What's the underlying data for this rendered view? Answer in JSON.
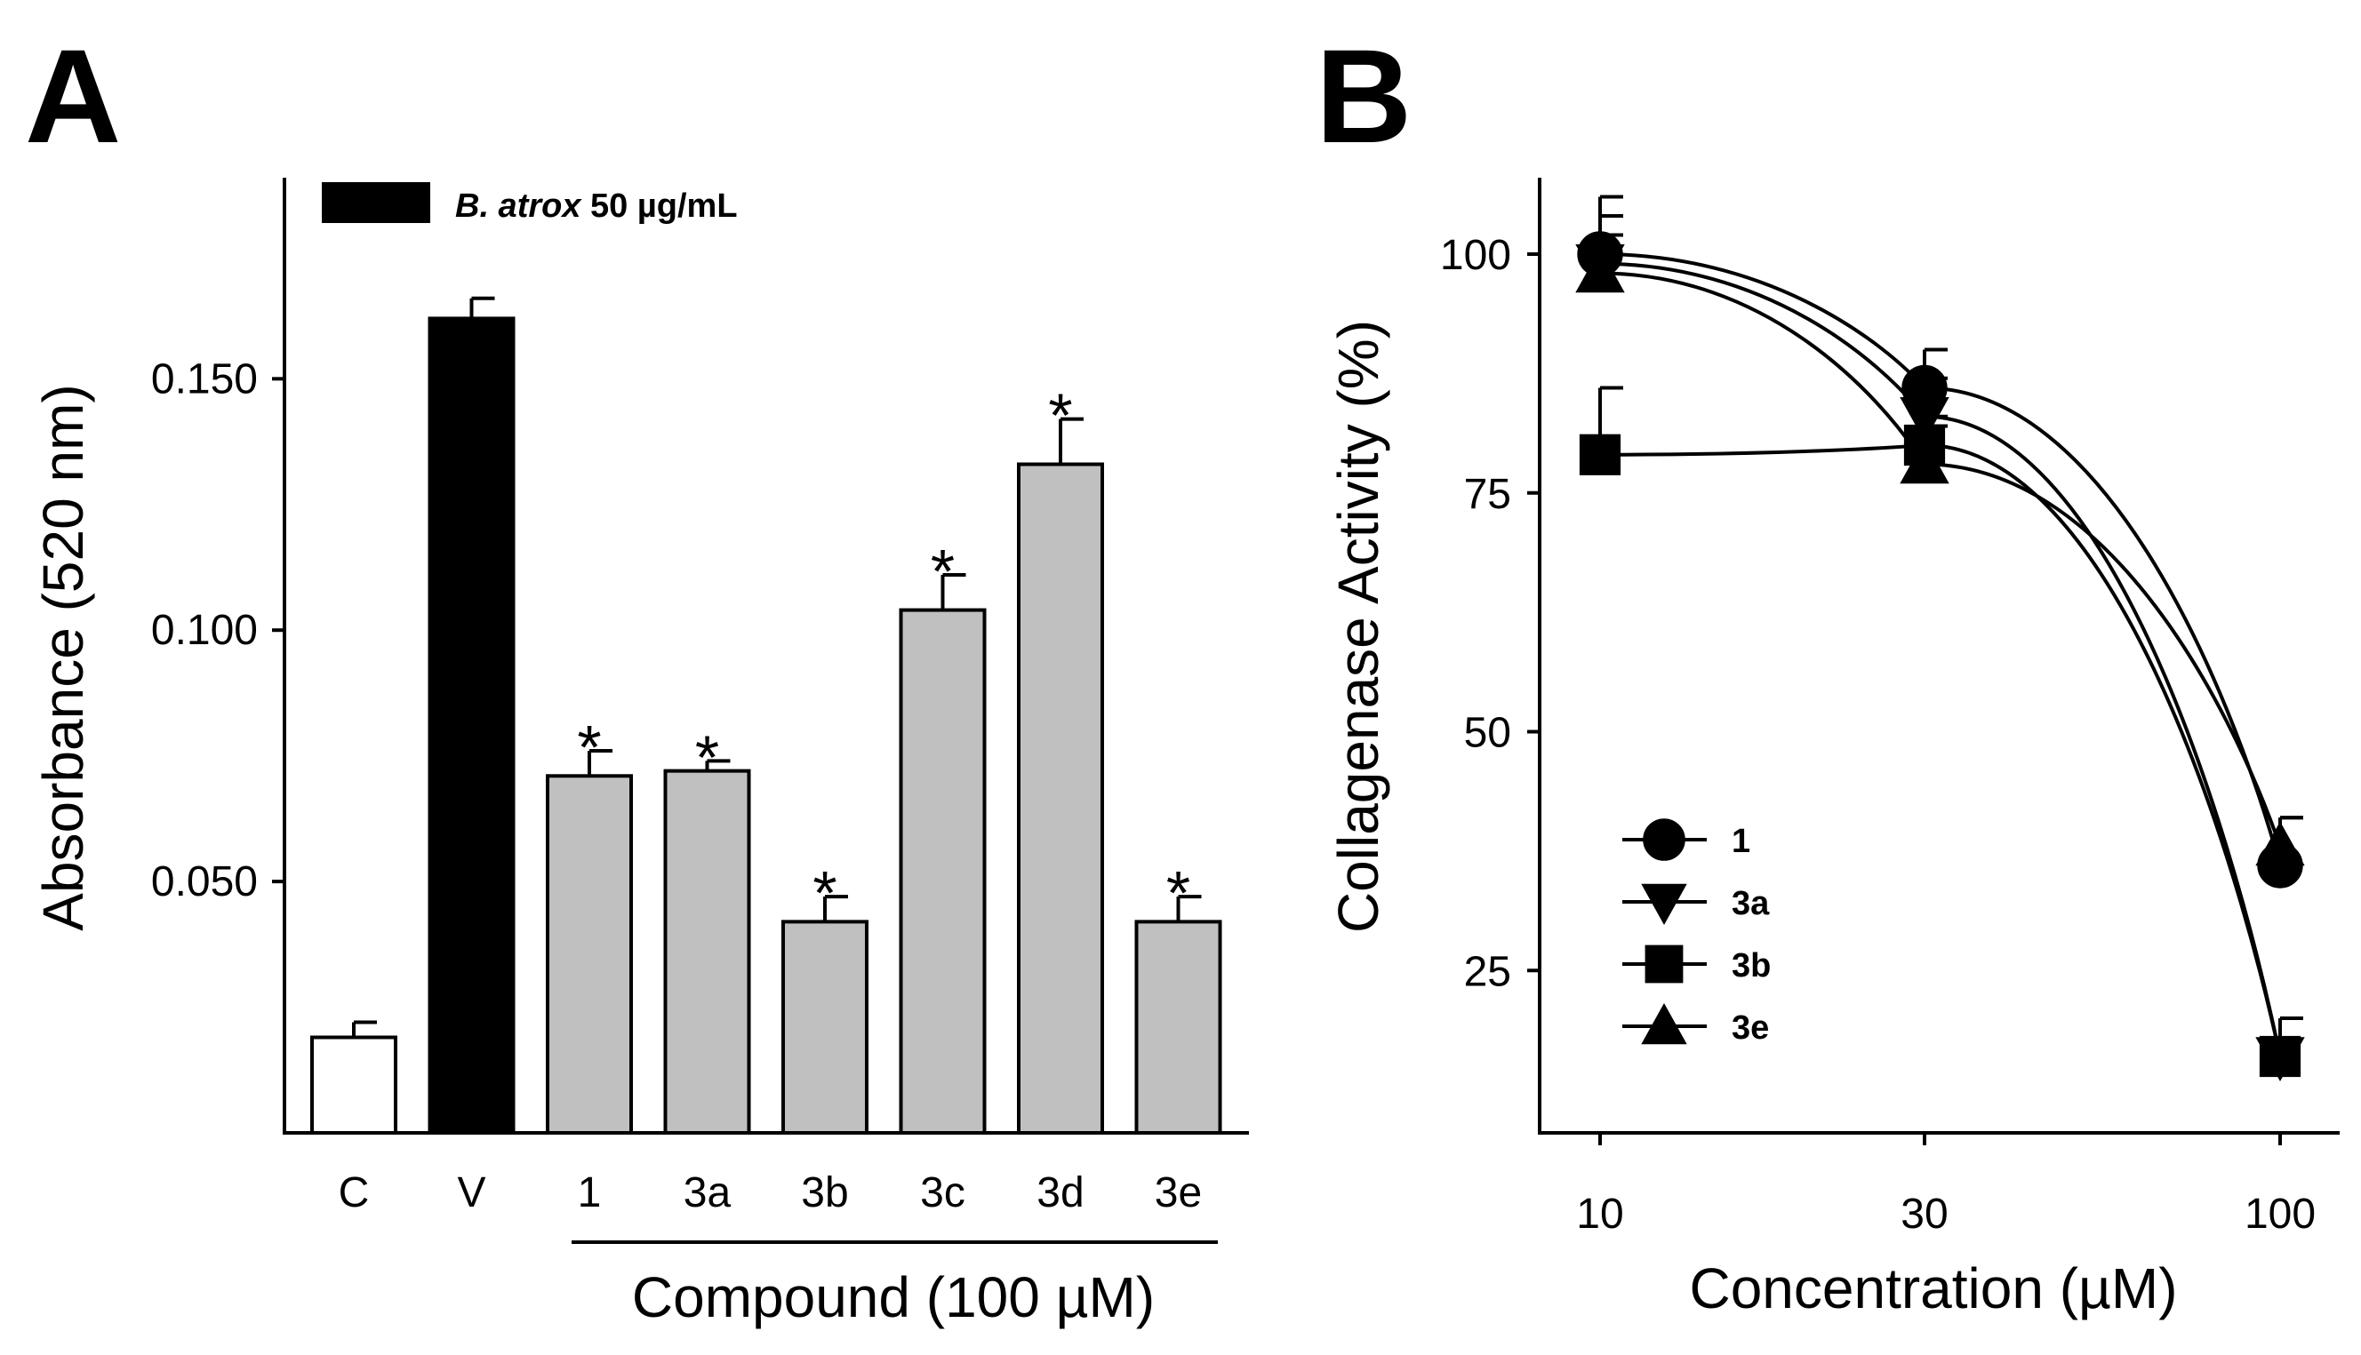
{
  "panel_a_letter": "A",
  "panel_b_letter": "B",
  "chart_data": [
    {
      "type": "bar",
      "panel": "A",
      "title": "",
      "ylabel": "Absorbance (520 nm)",
      "xlabel": "Compound (100 µM)",
      "ylim": [
        0,
        0.19
      ],
      "yticks": [
        "0.050",
        "0.100",
        "0.150"
      ],
      "ytick_values": [
        0.05,
        0.1,
        0.15
      ],
      "categories": [
        "C",
        "V",
        "1",
        "3a",
        "3b",
        "3c",
        "3d",
        "3e"
      ],
      "values": [
        0.019,
        0.162,
        0.071,
        0.072,
        0.042,
        0.104,
        0.133,
        0.042
      ],
      "errors": [
        0.003,
        0.004,
        0.005,
        0.002,
        0.005,
        0.007,
        0.009,
        0.005
      ],
      "fills": [
        "#ffffff",
        "#000000",
        "#c0c0c0",
        "#c0c0c0",
        "#c0c0c0",
        "#c0c0c0",
        "#c0c0c0",
        "#c0c0c0"
      ],
      "significant": [
        false,
        false,
        true,
        true,
        true,
        true,
        true,
        true
      ],
      "significance_marker": "*",
      "legend": {
        "label_italic": "B. atrox",
        "label_rest": " 50 µg/mL",
        "color": "#000000",
        "position": "top-left"
      }
    },
    {
      "type": "line",
      "panel": "B",
      "title": "",
      "ylabel": "Collagenase Activity (%)",
      "xlabel": "Concentration (µM)",
      "xscale": "log",
      "x": [
        10,
        30,
        100
      ],
      "xticks": [
        "10",
        "30",
        "100"
      ],
      "ylim": [
        8,
        108
      ],
      "yticks": [
        "25",
        "50",
        "75",
        "100"
      ],
      "ytick_values": [
        25,
        50,
        75,
        100
      ],
      "legend_position": "bottom-left",
      "series": [
        {
          "name": "1",
          "marker": "circle",
          "values": [
            100,
            86,
            36
          ],
          "errors": [
            6,
            4,
            5
          ]
        },
        {
          "name": "3a",
          "marker": "triangle-down",
          "values": [
            99,
            83,
            16
          ],
          "errors": [
            5,
            4,
            4
          ]
        },
        {
          "name": "3b",
          "marker": "square",
          "values": [
            79,
            80,
            16
          ],
          "errors": [
            7,
            3,
            4
          ]
        },
        {
          "name": "3e",
          "marker": "triangle-up",
          "values": [
            98,
            78,
            38
          ],
          "errors": [
            4,
            4,
            3
          ]
        }
      ]
    }
  ]
}
